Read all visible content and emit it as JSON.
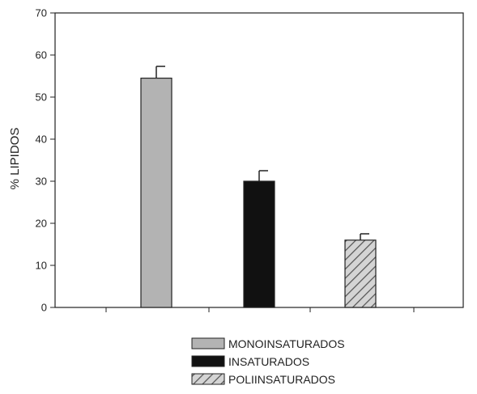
{
  "chart_data": {
    "type": "bar",
    "title": "",
    "xlabel": "",
    "ylabel": "% LIPIDOS",
    "ylim": [
      0,
      70
    ],
    "yticks": [
      0,
      10,
      20,
      30,
      40,
      50,
      60,
      70
    ],
    "grid": false,
    "legend_position": "bottom",
    "series": [
      {
        "name": "MONOINSATURADOS",
        "value": 54.5,
        "error": 2.8,
        "color": "#b3b3b3",
        "pattern": "solid"
      },
      {
        "name": "INSATURADOS",
        "value": 30,
        "error": 2.5,
        "color": "#111111",
        "pattern": "solid"
      },
      {
        "name": "POLIINSATURADOS",
        "value": 16,
        "error": 1.5,
        "color": "#b3b3b3",
        "pattern": "hatched"
      }
    ]
  }
}
